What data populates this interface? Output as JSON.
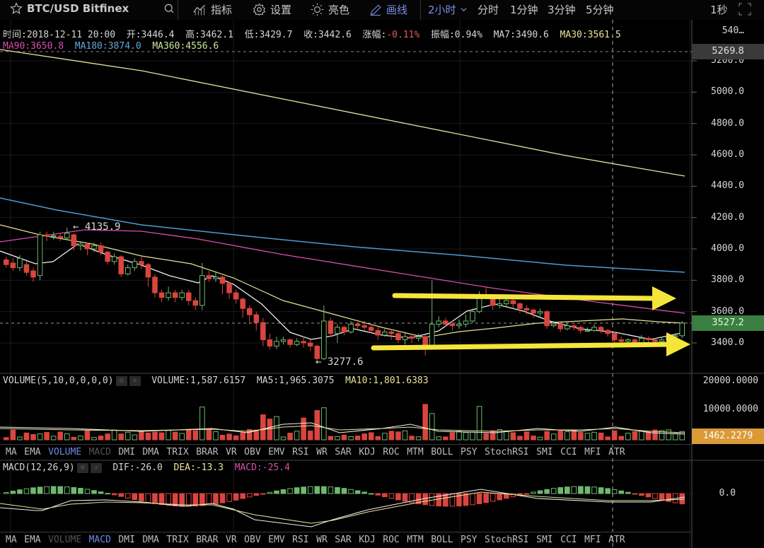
{
  "toolbar": {
    "symbol": "BTC/USD Bitfinex",
    "indicators_label": "指标",
    "settings_label": "设置",
    "brightness_label": "亮色",
    "draw_label": "画线",
    "interval_active": "2小时",
    "intervals": [
      "分时",
      "1分钟",
      "3分钟",
      "5分钟"
    ],
    "interval_seconds": "1秒"
  },
  "info": {
    "time": "时间:2018-12-11 20:00",
    "open": "开:3446.4",
    "high": "高:3462.1",
    "low": "低:3429.7",
    "close": "收:3442.6",
    "change_label": "涨幅:",
    "change_value": "-0.11%",
    "amplitude": "振幅:0.94%",
    "ma7": "MA7:3490.6",
    "ma30": "MA30:3561.5",
    "ma90": "MA90:3650.8",
    "ma180": "MA180:3874.0",
    "ma360": "MA360:4556.6"
  },
  "price_axis": {
    "labels": [
      "540…",
      "5200.0",
      "5000.0",
      "4800.0",
      "4600.0",
      "4400.0",
      "4200.0",
      "4000.0",
      "3800.0",
      "3600.0",
      "3400.0"
    ],
    "top_tag": "5269.8",
    "last_price": "3527.2"
  },
  "annotations": {
    "max": "← 4135.9",
    "min": "← 3277.6"
  },
  "volume": {
    "title": "VOLUME(5,10,0,0,0,0)",
    "volume": "VOLUME:1,587.6157",
    "ma5": "MA5:1,965.3075",
    "ma10": "MA10:1,801.6383",
    "axis": [
      "20000.0000",
      "10000.0000"
    ],
    "last_tag": "1462.2279"
  },
  "macd": {
    "title": "MACD(12,26,9)",
    "dif": "DIF:-26.0",
    "dea": "DEA:-13.3",
    "macd": "MACD:-25.4",
    "axis": [
      "0.0"
    ]
  },
  "tabs": [
    "MA",
    "EMA",
    "VOLUME",
    "MACD",
    "DMI",
    "DMA",
    "TRIX",
    "BRAR",
    "VR",
    "OBV",
    "EMV",
    "RSI",
    "WR",
    "SAR",
    "KDJ",
    "ROC",
    "MTM",
    "BOLL",
    "PSY",
    "StochRSI",
    "SMI",
    "CCI",
    "MFI",
    "ATR"
  ],
  "colors": {
    "up": "#6fb86f",
    "down": "#d9453f",
    "ma7": "#f0f0f0",
    "ma30": "#e8e39a",
    "ma90": "#d84fae",
    "ma180": "#4f9ad6",
    "ma360": "#e6e39c",
    "arrow": "#f5e53a"
  },
  "chart_data": {
    "type": "candlestick",
    "title": "BTC/USD Bitfinex 2小时",
    "ylim": [
      3250,
      5450
    ],
    "y_ticks": [
      3400,
      3600,
      3800,
      4000,
      4200,
      4400,
      4600,
      4800,
      5000,
      5200
    ],
    "grid": true,
    "annotations": [
      {
        "label": "4135.9",
        "type": "max"
      },
      {
        "label": "3277.6",
        "type": "min"
      },
      {
        "label": "upper-arrow",
        "price": 3770,
        "type": "yellow-arrow"
      },
      {
        "label": "lower-arrow",
        "price": 3400,
        "type": "yellow-arrow"
      }
    ],
    "candles": [
      [
        3930,
        3900,
        3950,
        3880
      ],
      [
        3910,
        3880,
        3940,
        3860
      ],
      [
        3880,
        3940,
        3960,
        3860
      ],
      [
        3900,
        3850,
        3920,
        3830
      ],
      [
        3860,
        3820,
        3880,
        3790
      ],
      [
        3830,
        4090,
        4110,
        3800
      ],
      [
        4090,
        4080,
        4110,
        4050
      ],
      [
        4085,
        4085,
        4110,
        4060
      ],
      [
        4080,
        4070,
        4100,
        4050
      ],
      [
        4070,
        4100,
        4136,
        4060
      ],
      [
        4090,
        4020,
        4100,
        3990
      ],
      [
        4020,
        4030,
        4050,
        3990
      ],
      [
        4030,
        4000,
        4040,
        3960
      ],
      [
        4000,
        4020,
        4040,
        3980
      ],
      [
        4020,
        3980,
        4040,
        3960
      ],
      [
        3980,
        3920,
        3990,
        3900
      ],
      [
        3920,
        3950,
        3970,
        3900
      ],
      [
        3950,
        3840,
        3960,
        3820
      ],
      [
        3840,
        3880,
        3900,
        3830
      ],
      [
        3880,
        3920,
        3940,
        3860
      ],
      [
        3920,
        3900,
        3950,
        3870
      ],
      [
        3900,
        3820,
        3910,
        3760
      ],
      [
        3820,
        3720,
        3840,
        3690
      ],
      [
        3720,
        3690,
        3740,
        3660
      ],
      [
        3690,
        3720,
        3760,
        3670
      ],
      [
        3720,
        3690,
        3740,
        3660
      ],
      [
        3690,
        3720,
        3740,
        3670
      ],
      [
        3720,
        3670,
        3740,
        3640
      ],
      [
        3670,
        3640,
        3690,
        3610
      ],
      [
        3640,
        3830,
        3910,
        3610
      ],
      [
        3830,
        3810,
        3860,
        3790
      ],
      [
        3810,
        3820,
        3850,
        3790
      ],
      [
        3820,
        3780,
        3830,
        3710
      ],
      [
        3780,
        3720,
        3790,
        3680
      ],
      [
        3720,
        3680,
        3740,
        3650
      ],
      [
        3680,
        3620,
        3690,
        3560
      ],
      [
        3620,
        3580,
        3640,
        3520
      ],
      [
        3580,
        3530,
        3600,
        3480
      ],
      [
        3530,
        3420,
        3560,
        3380
      ],
      [
        3420,
        3380,
        3460,
        3360
      ],
      [
        3380,
        3410,
        3440,
        3360
      ],
      [
        3410,
        3420,
        3440,
        3390
      ],
      [
        3420,
        3390,
        3430,
        3370
      ],
      [
        3390,
        3410,
        3430,
        3380
      ],
      [
        3410,
        3400,
        3440,
        3370
      ],
      [
        3400,
        3380,
        3420,
        3350
      ],
      [
        3380,
        3300,
        3390,
        3278
      ],
      [
        3300,
        3540,
        3640,
        3290
      ],
      [
        3540,
        3460,
        3560,
        3440
      ],
      [
        3460,
        3500,
        3520,
        3400
      ],
      [
        3500,
        3470,
        3510,
        3450
      ],
      [
        3470,
        3520,
        3540,
        3460
      ],
      [
        3520,
        3510,
        3530,
        3490
      ],
      [
        3510,
        3500,
        3540,
        3480
      ],
      [
        3500,
        3480,
        3520,
        3470
      ],
      [
        3480,
        3450,
        3500,
        3420
      ],
      [
        3450,
        3470,
        3490,
        3440
      ],
      [
        3470,
        3460,
        3490,
        3420
      ],
      [
        3460,
        3420,
        3470,
        3400
      ],
      [
        3420,
        3440,
        3470,
        3390
      ],
      [
        3440,
        3430,
        3460,
        3400
      ],
      [
        3430,
        3440,
        3460,
        3410
      ],
      [
        3440,
        3380,
        3450,
        3320
      ],
      [
        3380,
        3520,
        3800,
        3360
      ],
      [
        3520,
        3540,
        3570,
        3500
      ],
      [
        3540,
        3520,
        3560,
        3500
      ],
      [
        3520,
        3510,
        3540,
        3480
      ],
      [
        3510,
        3520,
        3550,
        3490
      ],
      [
        3520,
        3540,
        3580,
        3500
      ],
      [
        3540,
        3600,
        3620,
        3530
      ],
      [
        3600,
        3700,
        3730,
        3590
      ],
      [
        3700,
        3690,
        3760,
        3680
      ],
      [
        3690,
        3640,
        3700,
        3610
      ],
      [
        3640,
        3650,
        3680,
        3620
      ],
      [
        3650,
        3670,
        3690,
        3630
      ],
      [
        3670,
        3650,
        3690,
        3620
      ],
      [
        3650,
        3620,
        3660,
        3590
      ],
      [
        3620,
        3610,
        3640,
        3580
      ],
      [
        3610,
        3590,
        3620,
        3560
      ],
      [
        3590,
        3600,
        3620,
        3570
      ],
      [
        3600,
        3510,
        3610,
        3490
      ],
      [
        3510,
        3520,
        3540,
        3500
      ],
      [
        3520,
        3490,
        3530,
        3470
      ],
      [
        3490,
        3510,
        3530,
        3480
      ],
      [
        3510,
        3500,
        3520,
        3480
      ],
      [
        3500,
        3480,
        3510,
        3460
      ],
      [
        3480,
        3480,
        3500,
        3470
      ],
      [
        3480,
        3500,
        3520,
        3470
      ],
      [
        3500,
        3480,
        3510,
        3460
      ],
      [
        3480,
        3460,
        3490,
        3440
      ],
      [
        3460,
        3420,
        3470,
        3400
      ],
      [
        3420,
        3410,
        3440,
        3390
      ],
      [
        3410,
        3420,
        3430,
        3400
      ],
      [
        3420,
        3400,
        3430,
        3390
      ],
      [
        3400,
        3430,
        3450,
        3400
      ],
      [
        3430,
        3420,
        3440,
        3400
      ],
      [
        3420,
        3410,
        3430,
        3400
      ],
      [
        3410,
        3420,
        3440,
        3400
      ],
      [
        3420,
        3440,
        3460,
        3410
      ],
      [
        3440,
        3446,
        3462,
        3430
      ],
      [
        3446,
        3527,
        3540,
        3430
      ]
    ]
  }
}
